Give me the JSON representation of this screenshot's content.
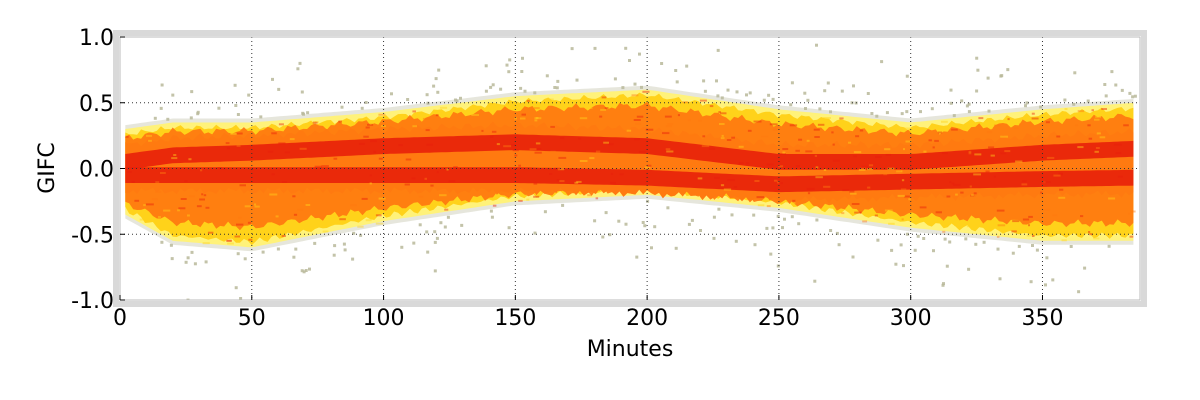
{
  "chart_data": {
    "type": "heatmap",
    "title": "",
    "xlabel": "Minutes",
    "ylabel": "GIFC",
    "xlim": [
      0,
      387
    ],
    "ylim": [
      -1.0,
      1.0
    ],
    "x_ticks": [
      0,
      50,
      100,
      150,
      200,
      250,
      300,
      350
    ],
    "x_tick_labels": [
      "0",
      "50",
      "100",
      "150",
      "200",
      "250",
      "300",
      "350"
    ],
    "y_ticks": [
      -1.0,
      -0.5,
      0.0,
      0.5,
      1.0
    ],
    "y_tick_labels": [
      "-1.0",
      "-0.5",
      "0.0",
      "0.5",
      "1.0"
    ],
    "grid": true,
    "colors": {
      "core": "#e8200a",
      "mid": "#ff7a10",
      "outer": "#ffd21a",
      "edge": "#fff27a",
      "outline": "#b8b89a",
      "frame": "#d9d9d9"
    },
    "density_envelope": {
      "x": [
        2,
        20,
        50,
        100,
        150,
        200,
        250,
        300,
        350,
        385
      ],
      "upper_extent": [
        0.3,
        0.35,
        0.35,
        0.43,
        0.55,
        0.6,
        0.45,
        0.35,
        0.45,
        0.5
      ],
      "lower_extent": [
        -0.35,
        -0.55,
        -0.6,
        -0.4,
        -0.25,
        -0.2,
        -0.3,
        -0.45,
        -0.55,
        -0.55
      ],
      "ridge_upper": [
        0.05,
        0.1,
        0.12,
        0.17,
        0.2,
        0.17,
        0.05,
        0.05,
        0.12,
        0.15
      ],
      "ridge_lower": [
        -0.05,
        -0.05,
        -0.05,
        -0.05,
        -0.05,
        -0.07,
        -0.12,
        -0.1,
        -0.08,
        -0.07
      ]
    }
  }
}
